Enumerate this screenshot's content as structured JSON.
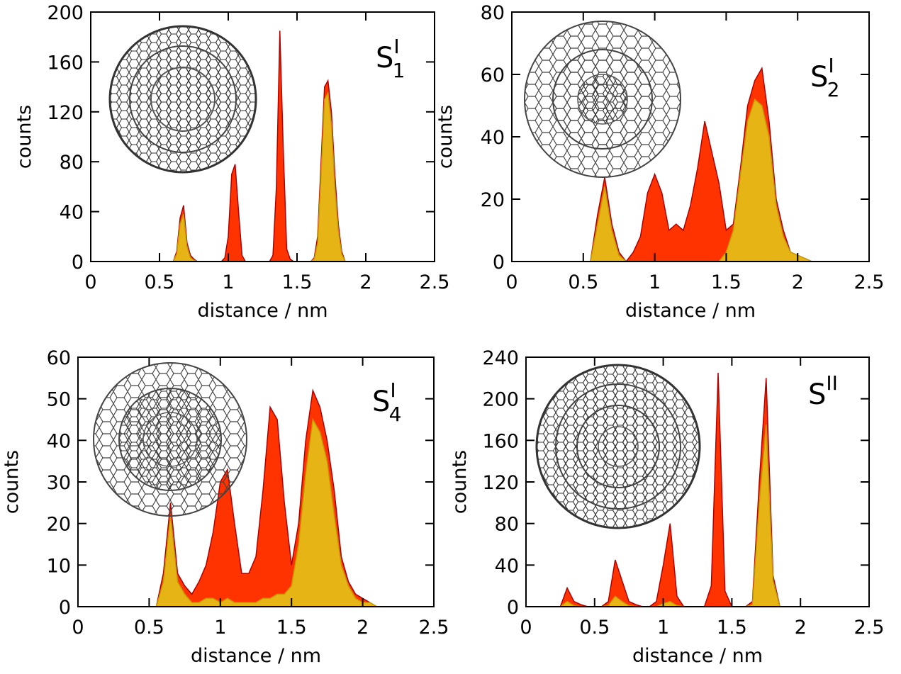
{
  "chart_data": [
    {
      "type": "area",
      "xlabel": "distance / nm",
      "ylabel": "counts",
      "annotation": {
        "base": "S",
        "sub": "1",
        "sup": "I"
      },
      "xlim": [
        0,
        2.5
      ],
      "ylim": [
        0,
        200
      ],
      "xticks": [
        0,
        0.5,
        1,
        1.5,
        2,
        2.5
      ],
      "yticks": [
        0,
        40,
        80,
        120,
        160,
        200
      ],
      "x": [
        0.6,
        0.625,
        0.65,
        0.675,
        0.7,
        0.725,
        0.75,
        0.775,
        0.8,
        0.825,
        0.85,
        0.875,
        0.9,
        0.925,
        0.95,
        0.975,
        1.0,
        1.025,
        1.05,
        1.075,
        1.1,
        1.125,
        1.15,
        1.175,
        1.2,
        1.225,
        1.25,
        1.275,
        1.3,
        1.325,
        1.35,
        1.375,
        1.4,
        1.425,
        1.45,
        1.475,
        1.5,
        1.525,
        1.55,
        1.575,
        1.6,
        1.625,
        1.65,
        1.675,
        1.7,
        1.725,
        1.75,
        1.775,
        1.8,
        1.825,
        1.85
      ],
      "series": [
        {
          "color": "#ff3300",
          "values": [
            0,
            8,
            35,
            45,
            15,
            5,
            2,
            0,
            0,
            0,
            0,
            0,
            0,
            0,
            0,
            3,
            20,
            70,
            78,
            40,
            5,
            0,
            0,
            0,
            0,
            0,
            0,
            0,
            0,
            5,
            60,
            185,
            90,
            10,
            2,
            0,
            0,
            0,
            0,
            0,
            0,
            3,
            20,
            80,
            140,
            145,
            120,
            70,
            30,
            8,
            0
          ]
        },
        {
          "color": "#e6b414",
          "values": [
            0,
            6,
            30,
            38,
            12,
            3,
            1,
            0,
            0,
            0,
            0,
            0,
            0,
            0,
            0,
            0,
            0,
            0,
            0,
            0,
            0,
            0,
            0,
            0,
            0,
            0,
            0,
            0,
            0,
            0,
            0,
            0,
            0,
            0,
            0,
            0,
            0,
            0,
            0,
            0,
            0,
            2,
            15,
            70,
            130,
            135,
            110,
            60,
            25,
            6,
            0
          ]
        }
      ]
    },
    {
      "type": "area",
      "xlabel": "distance / nm",
      "ylabel": "counts",
      "annotation": {
        "base": "S",
        "sub": "2",
        "sup": "I"
      },
      "xlim": [
        0,
        2.5
      ],
      "ylim": [
        0,
        80
      ],
      "xticks": [
        0,
        0.5,
        1,
        1.5,
        2,
        2.5
      ],
      "yticks": [
        0,
        20,
        40,
        60,
        80
      ],
      "x": [
        0.55,
        0.6,
        0.65,
        0.7,
        0.75,
        0.8,
        0.85,
        0.9,
        0.95,
        1.0,
        1.05,
        1.1,
        1.15,
        1.2,
        1.25,
        1.3,
        1.35,
        1.4,
        1.45,
        1.5,
        1.55,
        1.6,
        1.65,
        1.7,
        1.75,
        1.8,
        1.85,
        1.9,
        1.95,
        2.0,
        2.05,
        2.1
      ],
      "series": [
        {
          "color": "#ff3300",
          "values": [
            0,
            15,
            27,
            12,
            3,
            0,
            3,
            8,
            22,
            28,
            22,
            10,
            12,
            10,
            18,
            30,
            45,
            35,
            25,
            10,
            12,
            30,
            50,
            58,
            62,
            45,
            20,
            10,
            3,
            2,
            1,
            0
          ]
        },
        {
          "color": "#e6b414",
          "values": [
            0,
            12,
            24,
            10,
            2,
            0,
            0,
            0,
            0,
            0,
            0,
            0,
            0,
            0,
            0,
            0,
            0,
            0,
            0,
            3,
            10,
            28,
            45,
            52,
            50,
            40,
            18,
            8,
            3,
            2,
            1,
            0
          ]
        }
      ]
    },
    {
      "type": "area",
      "xlabel": "distance / nm",
      "ylabel": "counts",
      "annotation": {
        "base": "S",
        "sub": "4",
        "sup": "I"
      },
      "xlim": [
        0,
        2.5
      ],
      "ylim": [
        0,
        60
      ],
      "xticks": [
        0,
        0.5,
        1,
        1.5,
        2,
        2.5
      ],
      "yticks": [
        0,
        10,
        20,
        30,
        40,
        50,
        60
      ],
      "x": [
        0.55,
        0.6,
        0.65,
        0.7,
        0.75,
        0.8,
        0.85,
        0.9,
        0.95,
        1.0,
        1.05,
        1.1,
        1.15,
        1.2,
        1.25,
        1.3,
        1.35,
        1.4,
        1.45,
        1.5,
        1.55,
        1.6,
        1.65,
        1.7,
        1.75,
        1.8,
        1.85,
        1.9,
        1.95,
        2.0,
        2.05,
        2.1
      ],
      "series": [
        {
          "color": "#ff3300",
          "values": [
            0,
            8,
            25,
            8,
            5,
            3,
            6,
            10,
            18,
            30,
            33,
            20,
            8,
            8,
            12,
            28,
            48,
            45,
            25,
            10,
            20,
            40,
            52,
            48,
            40,
            28,
            12,
            6,
            3,
            2,
            1,
            0
          ]
        },
        {
          "color": "#e6b414",
          "values": [
            0,
            6,
            22,
            6,
            3,
            1,
            1,
            2,
            2,
            1,
            2,
            1,
            1,
            1,
            1,
            2,
            2,
            3,
            3,
            5,
            15,
            32,
            45,
            42,
            35,
            22,
            10,
            5,
            2,
            1,
            1,
            0
          ]
        }
      ]
    },
    {
      "type": "area",
      "xlabel": "distance / nm",
      "ylabel": "counts",
      "annotation": {
        "base": "S",
        "sup": "II"
      },
      "xlim": [
        0,
        2.5
      ],
      "ylim": [
        0,
        240
      ],
      "xticks": [
        0,
        0.5,
        1,
        1.5,
        2,
        2.5
      ],
      "yticks": [
        0,
        40,
        80,
        120,
        160,
        200,
        240
      ],
      "x": [
        0.25,
        0.3,
        0.35,
        0.4,
        0.45,
        0.5,
        0.55,
        0.6,
        0.65,
        0.7,
        0.75,
        0.8,
        0.85,
        0.9,
        0.95,
        1.0,
        1.05,
        1.1,
        1.15,
        1.2,
        1.25,
        1.3,
        1.35,
        1.4,
        1.45,
        1.5,
        1.55,
        1.6,
        1.65,
        1.7,
        1.75,
        1.8,
        1.85
      ],
      "series": [
        {
          "color": "#ff3300",
          "values": [
            0,
            18,
            5,
            2,
            0,
            0,
            0,
            5,
            45,
            25,
            5,
            2,
            0,
            0,
            5,
            40,
            80,
            10,
            0,
            0,
            0,
            0,
            20,
            225,
            15,
            0,
            0,
            0,
            5,
            120,
            220,
            30,
            0
          ]
        },
        {
          "color": "#e6b414",
          "values": [
            0,
            5,
            1,
            0,
            0,
            0,
            0,
            1,
            10,
            5,
            1,
            0,
            0,
            0,
            0,
            3,
            5,
            1,
            0,
            0,
            0,
            0,
            0,
            0,
            0,
            0,
            0,
            0,
            2,
            100,
            175,
            25,
            0
          ]
        }
      ]
    }
  ]
}
